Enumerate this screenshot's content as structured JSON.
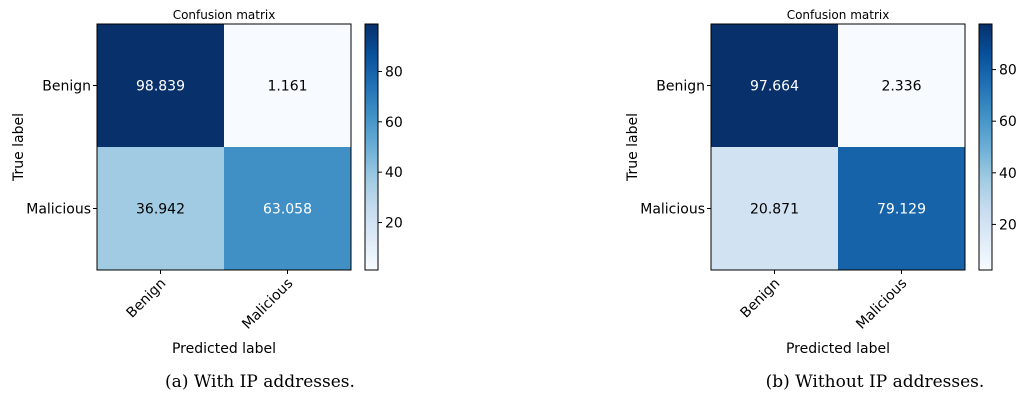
{
  "chart_data": [
    {
      "type": "heatmap",
      "title": "Confusion matrix",
      "xlabel": "Predicted label",
      "ylabel": "True label",
      "x_categories": [
        "Benign",
        "Malicious"
      ],
      "y_categories": [
        "Benign",
        "Malicious"
      ],
      "values": [
        [
          98.839,
          1.161
        ],
        [
          36.942,
          63.058
        ]
      ],
      "value_labels": [
        [
          "98.839",
          "1.161"
        ],
        [
          "36.942",
          "63.058"
        ]
      ],
      "colorbar_ticks": [
        20,
        40,
        60,
        80
      ],
      "colorbar_range": [
        1.161,
        98.839
      ],
      "colormap": "Blues",
      "colormap_stops": [
        "#f7fbff",
        "#deebf7",
        "#c6dbef",
        "#9ecae1",
        "#6baed6",
        "#4292c6",
        "#2171b5",
        "#08519c",
        "#08306b"
      ]
    },
    {
      "type": "heatmap",
      "title": "Confusion matrix",
      "xlabel": "Predicted label",
      "ylabel": "True label",
      "x_categories": [
        "Benign",
        "Malicious"
      ],
      "y_categories": [
        "Benign",
        "Malicious"
      ],
      "values": [
        [
          97.664,
          2.336
        ],
        [
          20.871,
          79.129
        ]
      ],
      "value_labels": [
        [
          "97.664",
          "2.336"
        ],
        [
          "20.871",
          "79.129"
        ]
      ],
      "colorbar_ticks": [
        20,
        40,
        60,
        80
      ],
      "colorbar_range": [
        2.336,
        97.664
      ],
      "colormap": "Blues",
      "colormap_stops": [
        "#f7fbff",
        "#deebf7",
        "#c6dbef",
        "#9ecae1",
        "#6baed6",
        "#4292c6",
        "#2171b5",
        "#08519c",
        "#08306b"
      ]
    }
  ],
  "captions": [
    "(a) With IP addresses.",
    "(b) Without IP addresses."
  ]
}
